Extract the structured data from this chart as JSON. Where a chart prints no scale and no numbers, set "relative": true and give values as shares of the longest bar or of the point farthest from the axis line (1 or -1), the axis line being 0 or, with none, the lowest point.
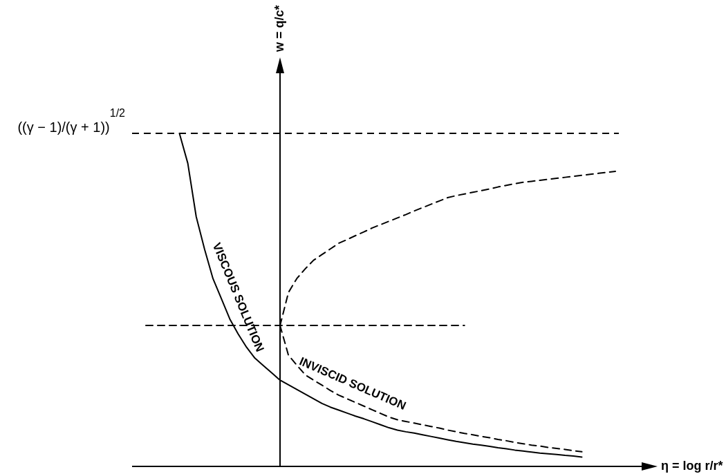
{
  "chart_data": {
    "type": "line",
    "relative": true,
    "xlabel": "η = log r/r*",
    "annotations": [
      "w = q/c*"
    ],
    "legend": false,
    "marker": "none",
    "categories": [
      null,
      null,
      null,
      null,
      null,
      null,
      null,
      null,
      null,
      null,
      null,
      null,
      null,
      null,
      null,
      null,
      null,
      null,
      null,
      null,
      null,
      null,
      null,
      null,
      null,
      null,
      null,
      null,
      null,
      null,
      null,
      null,
      null,
      null,
      null,
      null,
      null,
      null,
      null,
      null,
      null,
      null,
      null,
      null,
      null,
      null,
      null,
      null,
      null,
      null,
      null,
      null,
      null,
      null,
      null,
      null,
      null
    ],
    "ref_lines": [
      {
        "axis": "y",
        "value": 1,
        "label": "((γ − 1)/(γ + 1))$^{1/2}$",
        "line_style": "dashed",
        "color": "#000000"
      }
    ],
    "series": [
      {
        "name": "VISCOUS SOLUTION",
        "color": "#000000",
        "line_style": "solid",
        "values": [
          null,
          null,
          null,
          null,
          1,
          0.91,
          0.75,
          0.652,
          0.564,
          0.504,
          0.443,
          0.398,
          0.358,
          0.325,
          0.303,
          0.281,
          0.259,
          0.245,
          0.231,
          0.217,
          0.203,
          0.189,
          0.178,
          0.169,
          0.16,
          0.151,
          0.143,
          0.134,
          0.125,
          0.116,
          0.109,
          0.104,
          0.1,
          0.095,
          0.09,
          0.085,
          0.08,
          0.075,
          0.071,
          0.067,
          0.064,
          0.06,
          0.056,
          0.053,
          0.049,
          0.046,
          0.043,
          0.04,
          0.038,
          0.036,
          0.033,
          0.031,
          0.028,
          null,
          null,
          null,
          null
        ]
      },
      {
        "name": "INVISCID SOLUTION",
        "color": "#000000",
        "line_style": "dashed",
        "values": [
          null,
          null,
          null,
          null,
          null,
          null,
          null,
          null,
          null,
          null,
          null,
          null,
          null,
          null,
          null,
          null,
          0.423,
          0.334,
          0.304,
          0.275,
          0.259,
          0.244,
          0.228,
          0.214,
          0.203,
          0.192,
          0.181,
          0.17,
          0.159,
          0.148,
          0.14,
          0.135,
          0.13,
          0.125,
          0.12,
          0.115,
          0.109,
          0.104,
          0.099,
          0.095,
          0.09,
          0.086,
          0.081,
          0.077,
          0.072,
          0.068,
          0.064,
          0.061,
          0.057,
          0.054,
          0.051,
          0.047,
          0.044,
          null,
          null,
          null,
          null
        ]
      },
      {
        "color": "#000000",
        "line_style": "dashed",
        "values": [
          null,
          null,
          null,
          null,
          null,
          null,
          null,
          null,
          null,
          null,
          null,
          null,
          null,
          null,
          null,
          null,
          0.423,
          0.522,
          0.564,
          0.593,
          0.619,
          0.636,
          0.653,
          0.67,
          0.681,
          0.693,
          0.704,
          0.716,
          0.726,
          0.736,
          0.746,
          0.756,
          0.767,
          0.777,
          0.787,
          0.797,
          0.807,
          0.813,
          0.818,
          0.823,
          0.828,
          0.833,
          0.839,
          0.844,
          0.849,
          0.853,
          0.856,
          0.859,
          0.862,
          0.865,
          0.868,
          0.871,
          0.874,
          0.877,
          0.88,
          0.883,
          0.886
        ]
      },
      {
        "color": "#000000",
        "line_style": "dashed",
        "values": [
          0.423,
          0.423,
          0.423,
          0.423,
          0.423,
          0.423,
          0.423,
          0.423,
          0.423,
          0.423,
          0.423,
          0.423,
          0.423,
          0.423,
          0.423,
          0.423,
          0.423,
          0.423,
          0.423,
          0.423,
          0.423,
          0.423,
          0.423,
          0.423,
          0.423,
          0.423,
          0.423,
          0.423,
          0.423,
          0.423,
          0.423,
          0.423,
          0.423,
          0.423,
          0.423,
          0.423,
          0.423,
          0.423,
          0.423,
          null,
          null,
          null,
          null,
          null,
          null,
          null,
          null,
          null,
          null,
          null,
          null,
          null,
          null,
          null,
          null,
          null,
          null
        ]
      }
    ]
  }
}
